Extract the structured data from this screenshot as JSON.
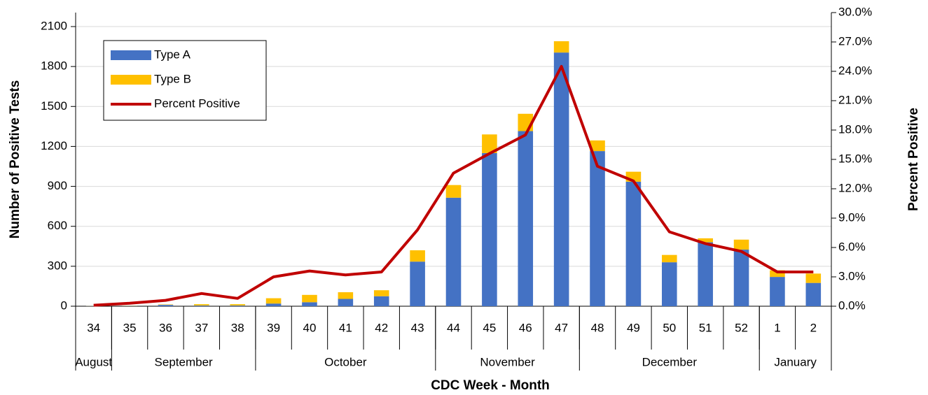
{
  "chart_data": {
    "type": "bar",
    "categories": [
      "34",
      "35",
      "36",
      "37",
      "38",
      "39",
      "40",
      "41",
      "42",
      "43",
      "44",
      "45",
      "46",
      "47",
      "48",
      "49",
      "50",
      "51",
      "52",
      "1",
      "2"
    ],
    "x_groups": [
      {
        "label": "August",
        "count": 1
      },
      {
        "label": "September",
        "count": 4
      },
      {
        "label": "October",
        "count": 5
      },
      {
        "label": "November",
        "count": 4
      },
      {
        "label": "December",
        "count": 5
      },
      {
        "label": "January",
        "count": 2
      }
    ],
    "series": [
      {
        "name": "Type A",
        "type": "bar",
        "color": "#4472c4",
        "values": [
          2,
          3,
          10,
          5,
          5,
          20,
          30,
          55,
          75,
          335,
          815,
          1150,
          1315,
          1905,
          1165,
          935,
          330,
          480,
          425,
          220,
          175
        ]
      },
      {
        "name": "Type B",
        "type": "bar",
        "color": "#ffc000",
        "values": [
          1,
          2,
          3,
          10,
          10,
          40,
          55,
          50,
          45,
          85,
          95,
          140,
          130,
          85,
          80,
          75,
          55,
          30,
          75,
          50,
          70
        ]
      },
      {
        "name": "Percent Positive",
        "type": "line",
        "axis": "y2",
        "color": "#c00000",
        "values": [
          0.1,
          0.3,
          0.6,
          1.3,
          0.8,
          3.0,
          3.6,
          3.2,
          3.5,
          7.8,
          13.6,
          15.6,
          17.5,
          24.5,
          14.3,
          12.8,
          7.6,
          6.4,
          5.6,
          3.5,
          3.5
        ]
      }
    ],
    "ylim": [
      0,
      2205
    ],
    "yticks": [
      0,
      300,
      600,
      900,
      1200,
      1500,
      1800,
      2100
    ],
    "y2lim": [
      0,
      30
    ],
    "y2ticks": [
      {
        "value": 0,
        "label": "0.0%"
      },
      {
        "value": 3,
        "label": "3.0%"
      },
      {
        "value": 6,
        "label": "6.0%"
      },
      {
        "value": 9,
        "label": "9.0%"
      },
      {
        "value": 12,
        "label": "12.0%"
      },
      {
        "value": 15,
        "label": "15.0%"
      },
      {
        "value": 18,
        "label": "18.0%"
      },
      {
        "value": 21,
        "label": "21.0%"
      },
      {
        "value": 24,
        "label": "24.0%"
      },
      {
        "value": 27,
        "label": "27.0%"
      },
      {
        "value": 30,
        "label": "30.0%"
      }
    ],
    "ylabel": "Number of Positive Tests",
    "y2label": "Percent Positive",
    "xlabel": "CDC Week - Month",
    "grid": true,
    "legend": "upper left"
  }
}
